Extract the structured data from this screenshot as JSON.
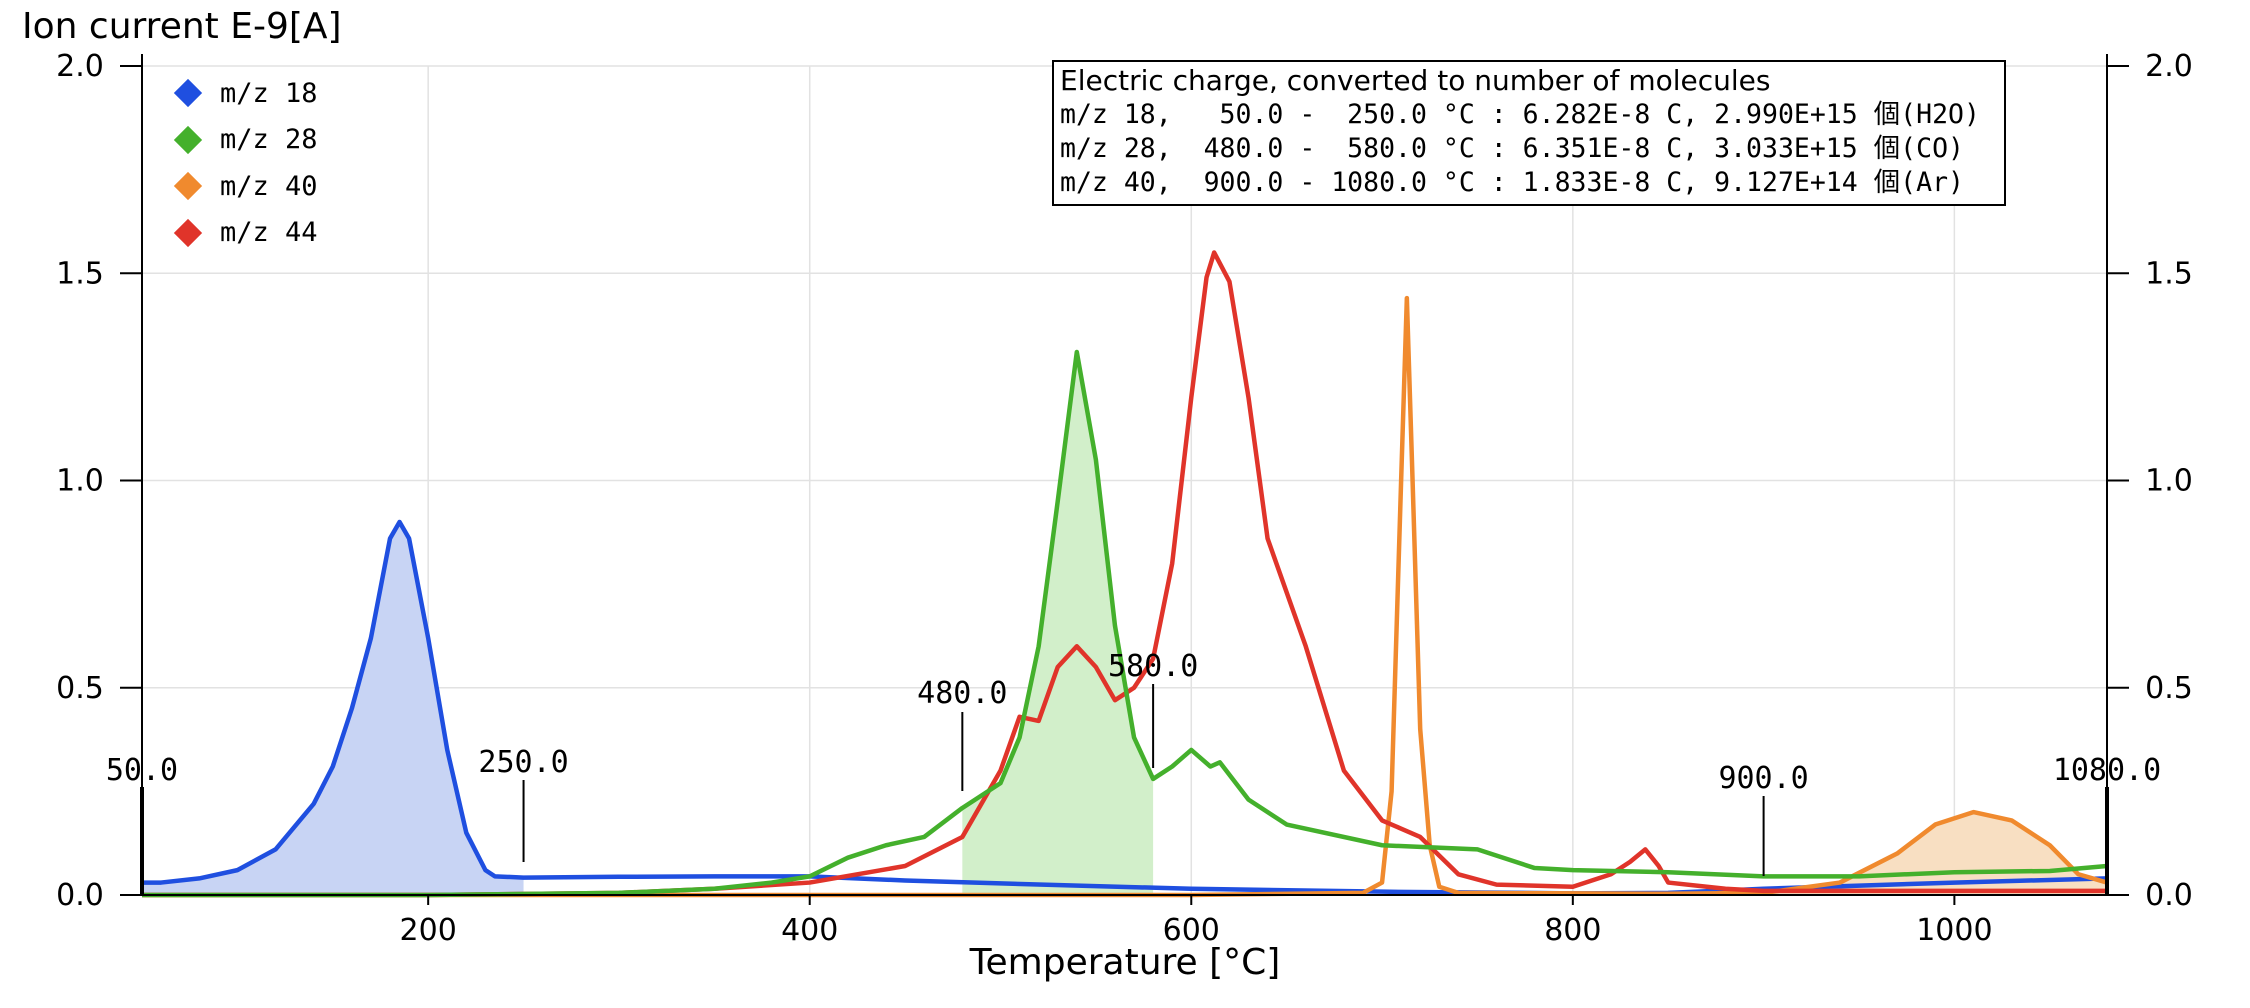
{
  "chart_data": {
    "type": "line",
    "ylabel": "Ion current E-9[A]",
    "xlabel": "Temperature [°C]",
    "xlim": [
      50,
      1080
    ],
    "ylim": [
      0,
      2.0
    ],
    "x_ticks": [
      200,
      400,
      600,
      800,
      1000
    ],
    "y_ticks": [
      "0.0",
      "0.5",
      "1.0",
      "1.5",
      "2.0"
    ],
    "grid": true,
    "legend_position": "top-left",
    "series": [
      {
        "name": "m/z 18",
        "color": "#1f4fe0",
        "fill": "#c8d4f4",
        "fill_range": [
          50,
          250
        ],
        "points": [
          [
            50,
            0.03
          ],
          [
            60,
            0.03
          ],
          [
            80,
            0.04
          ],
          [
            100,
            0.06
          ],
          [
            120,
            0.11
          ],
          [
            140,
            0.22
          ],
          [
            150,
            0.31
          ],
          [
            160,
            0.45
          ],
          [
            170,
            0.62
          ],
          [
            180,
            0.86
          ],
          [
            185,
            0.9
          ],
          [
            190,
            0.86
          ],
          [
            200,
            0.62
          ],
          [
            210,
            0.35
          ],
          [
            220,
            0.15
          ],
          [
            230,
            0.06
          ],
          [
            235,
            0.045
          ],
          [
            250,
            0.042
          ],
          [
            300,
            0.044
          ],
          [
            350,
            0.045
          ],
          [
            400,
            0.045
          ],
          [
            450,
            0.035
          ],
          [
            500,
            0.028
          ],
          [
            600,
            0.015
          ],
          [
            700,
            0.008
          ],
          [
            800,
            0.004
          ],
          [
            850,
            0.005
          ],
          [
            900,
            0.015
          ],
          [
            1000,
            0.03
          ],
          [
            1080,
            0.04
          ]
        ]
      },
      {
        "name": "m/z 28",
        "color": "#44b02c",
        "fill": "#d2efca",
        "fill_range": [
          480,
          580
        ],
        "points": [
          [
            50,
            0.0
          ],
          [
            200,
            0.0
          ],
          [
            300,
            0.005
          ],
          [
            350,
            0.015
          ],
          [
            380,
            0.03
          ],
          [
            400,
            0.045
          ],
          [
            420,
            0.09
          ],
          [
            440,
            0.12
          ],
          [
            460,
            0.14
          ],
          [
            480,
            0.21
          ],
          [
            500,
            0.27
          ],
          [
            510,
            0.38
          ],
          [
            520,
            0.6
          ],
          [
            530,
            0.95
          ],
          [
            540,
            1.31
          ],
          [
            550,
            1.05
          ],
          [
            560,
            0.65
          ],
          [
            570,
            0.38
          ],
          [
            580,
            0.28
          ],
          [
            590,
            0.31
          ],
          [
            600,
            0.35
          ],
          [
            610,
            0.31
          ],
          [
            615,
            0.32
          ],
          [
            630,
            0.23
          ],
          [
            650,
            0.17
          ],
          [
            700,
            0.12
          ],
          [
            750,
            0.11
          ],
          [
            780,
            0.065
          ],
          [
            800,
            0.06
          ],
          [
            850,
            0.055
          ],
          [
            900,
            0.045
          ],
          [
            950,
            0.045
          ],
          [
            1000,
            0.055
          ],
          [
            1050,
            0.058
          ],
          [
            1080,
            0.07
          ]
        ]
      },
      {
        "name": "m/z 40",
        "color": "#f08a2e",
        "fill": "#f8dfc2",
        "fill_range": [
          900,
          1080
        ],
        "points": [
          [
            50,
            0.0
          ],
          [
            600,
            0.0
          ],
          [
            690,
            0.005
          ],
          [
            700,
            0.03
          ],
          [
            705,
            0.25
          ],
          [
            710,
            1.0
          ],
          [
            713,
            1.44
          ],
          [
            716,
            1.0
          ],
          [
            720,
            0.4
          ],
          [
            725,
            0.12
          ],
          [
            730,
            0.02
          ],
          [
            740,
            0.005
          ],
          [
            850,
            0.003
          ],
          [
            900,
            0.005
          ],
          [
            940,
            0.03
          ],
          [
            970,
            0.1
          ],
          [
            990,
            0.17
          ],
          [
            1010,
            0.2
          ],
          [
            1030,
            0.18
          ],
          [
            1050,
            0.12
          ],
          [
            1065,
            0.05
          ],
          [
            1080,
            0.03
          ]
        ]
      },
      {
        "name": "m/z 44",
        "color": "#e0342a",
        "points": [
          [
            50,
            0.0
          ],
          [
            200,
            0.0
          ],
          [
            300,
            0.005
          ],
          [
            350,
            0.015
          ],
          [
            400,
            0.03
          ],
          [
            450,
            0.07
          ],
          [
            480,
            0.14
          ],
          [
            500,
            0.3
          ],
          [
            510,
            0.43
          ],
          [
            520,
            0.42
          ],
          [
            530,
            0.55
          ],
          [
            540,
            0.6
          ],
          [
            550,
            0.55
          ],
          [
            560,
            0.47
          ],
          [
            570,
            0.5
          ],
          [
            580,
            0.57
          ],
          [
            590,
            0.8
          ],
          [
            600,
            1.2
          ],
          [
            608,
            1.49
          ],
          [
            612,
            1.55
          ],
          [
            620,
            1.48
          ],
          [
            630,
            1.2
          ],
          [
            640,
            0.86
          ],
          [
            660,
            0.6
          ],
          [
            680,
            0.3
          ],
          [
            700,
            0.18
          ],
          [
            710,
            0.16
          ],
          [
            720,
            0.14
          ],
          [
            740,
            0.05
          ],
          [
            760,
            0.025
          ],
          [
            800,
            0.02
          ],
          [
            820,
            0.05
          ],
          [
            830,
            0.08
          ],
          [
            838,
            0.11
          ],
          [
            845,
            0.07
          ],
          [
            850,
            0.03
          ],
          [
            880,
            0.015
          ],
          [
            900,
            0.01
          ],
          [
            1000,
            0.01
          ],
          [
            1080,
            0.01
          ]
        ]
      }
    ],
    "annotations": [
      {
        "label": "50.0",
        "x": 50
      },
      {
        "label": "250.0",
        "x": 250
      },
      {
        "label": "480.0",
        "x": 480
      },
      {
        "label": "580.0",
        "x": 580
      },
      {
        "label": "900.0",
        "x": 900
      },
      {
        "label": "1080.0",
        "x": 1080
      }
    ],
    "info_box": {
      "title": "Electric charge, converted to number of molecules",
      "lines": [
        "m/z 18,   50.0 -  250.0 °C : 6.282E-8 C, 2.990E+15 個(H2O)",
        "m/z 28,  480.0 -  580.0 °C : 6.351E-8 C, 3.033E+15 個(CO)",
        "m/z 40,  900.0 - 1080.0 °C : 1.833E-8 C, 9.127E+14 個(Ar)"
      ]
    }
  }
}
